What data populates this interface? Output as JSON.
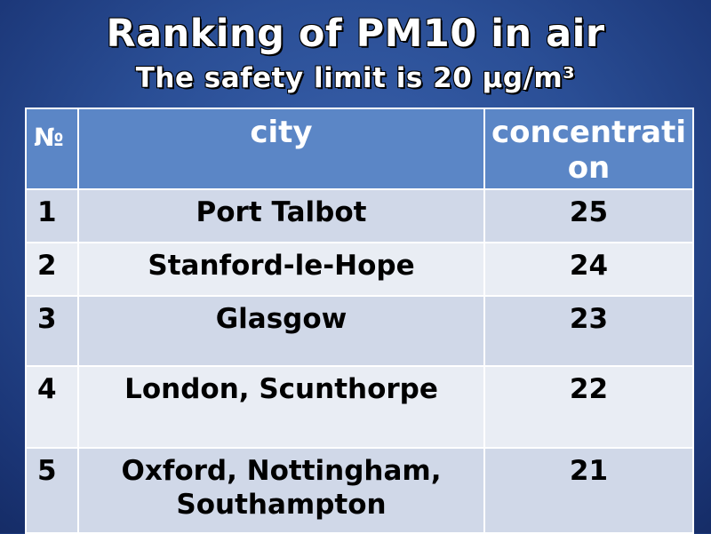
{
  "slide": {
    "title": "Ranking of PM10 in air",
    "subtitle": "The safety limit is 20 µg/m³"
  },
  "table": {
    "headers": {
      "number": "№",
      "city": "city",
      "concentration": "concentration"
    },
    "rows": [
      {
        "rank": "1",
        "city": "Port Talbot",
        "concentration": "25"
      },
      {
        "rank": "2",
        "city": "Stanford-le-Hope",
        "concentration": "24"
      },
      {
        "rank": "3",
        "city": "Glasgow",
        "concentration": "23"
      },
      {
        "rank": "4",
        "city": "London, Scunthorpe",
        "concentration": "22"
      },
      {
        "rank": "5",
        "city": "Oxford, Nottingham, Southampton",
        "concentration": "21"
      }
    ]
  },
  "colors": {
    "background": "#2a4e95",
    "header_fill": "#5b86c6",
    "row_odd": "#d0d8e8",
    "row_even": "#e9edf4"
  }
}
